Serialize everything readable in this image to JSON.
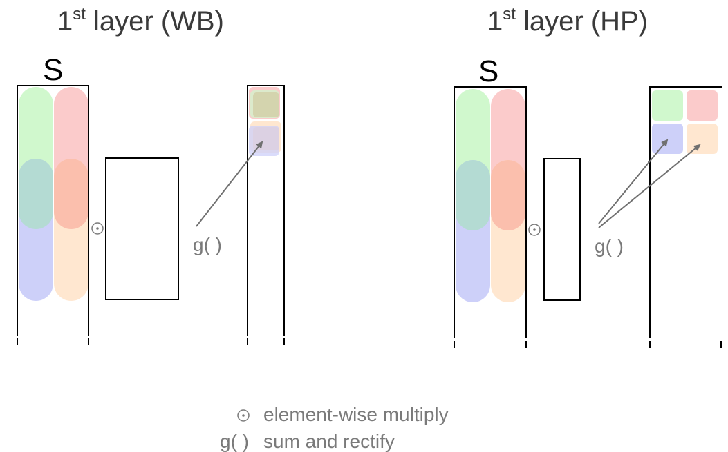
{
  "colors": {
    "green": "#c8f7c5",
    "red": "#fbc2c2",
    "teal": "#a8d5cc",
    "salmon": "#fbb59f",
    "blue": "#c5c8f9",
    "peach": "#ffe3c8",
    "line": "#000000",
    "gray": "#707070"
  },
  "panels": {
    "wb": {
      "title_main": "1",
      "title_sup": "st",
      "title_rest": " layer (WB)",
      "s_label": "S",
      "g_label": "g( )"
    },
    "hp": {
      "title_main": "1",
      "title_sup": "st",
      "title_rest": " layer (HP)",
      "s_label": "S",
      "g_label": "g( )"
    }
  },
  "legend": {
    "multiply_symbol": "⊙",
    "multiply_text": "element-wise multiply",
    "g_symbol": "g( )",
    "g_text": "sum and rectify"
  }
}
